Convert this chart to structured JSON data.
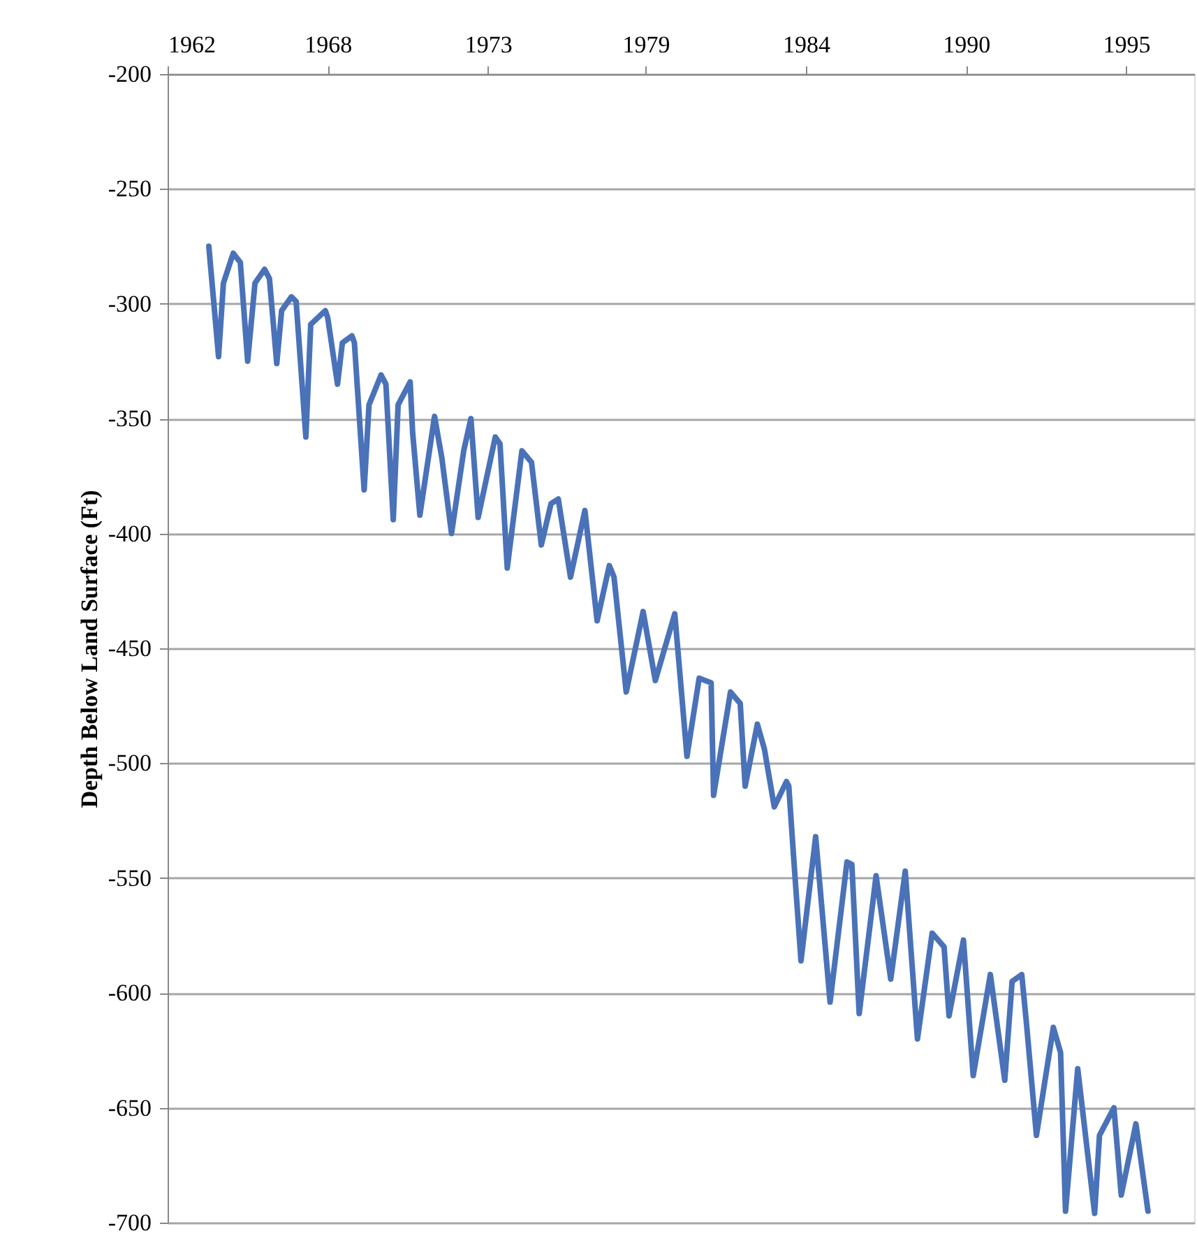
{
  "chart_data": {
    "type": "line",
    "ylabel": "Depth Below Land Surface (Ft)",
    "xlim": [
      "1962-11",
      "1998-02"
    ],
    "xticks": [
      {
        "value": "1962-11",
        "label": "1962"
      },
      {
        "value": "1968-05",
        "label": "1968"
      },
      {
        "value": "1973-11",
        "label": "1973"
      },
      {
        "value": "1979-04",
        "label": "1979"
      },
      {
        "value": "1984-10",
        "label": "1984"
      },
      {
        "value": "1990-04",
        "label": "1990"
      },
      {
        "value": "1995-10",
        "label": "1995"
      }
    ],
    "ylim": [
      -700,
      -200
    ],
    "yticks": [
      -200,
      -250,
      -300,
      -350,
      -400,
      -450,
      -500,
      -550,
      -600,
      -650,
      -700
    ],
    "grid": "y",
    "series": [
      {
        "color": "#4a72b8",
        "x": [
          "1964-04",
          "1964-08",
          "1964-10",
          "1965-02",
          "1965-05",
          "1965-08",
          "1965-11",
          "1966-03",
          "1966-05",
          "1966-08",
          "1966-10",
          "1967-02",
          "1967-04",
          "1967-08",
          "1967-10",
          "1968-04",
          "1968-05",
          "1968-09",
          "1968-11",
          "1969-03",
          "1969-04",
          "1969-08",
          "1969-10",
          "1970-03",
          "1970-05",
          "1970-08",
          "1970-10",
          "1971-03",
          "1971-04",
          "1971-07",
          "1972-01",
          "1972-04",
          "1972-08",
          "1973-01",
          "1973-04",
          "1973-07",
          "1974-02",
          "1974-04",
          "1974-07",
          "1975-01",
          "1975-05",
          "1975-09",
          "1976-01",
          "1976-04",
          "1976-09",
          "1977-03",
          "1977-08",
          "1978-01",
          "1978-03",
          "1978-08",
          "1979-03",
          "1979-08",
          "1980-04",
          "1980-09",
          "1981-02",
          "1981-07",
          "1981-08",
          "1982-03",
          "1982-07",
          "1982-09",
          "1983-02",
          "1983-05",
          "1983-09",
          "1984-02",
          "1984-03",
          "1984-05",
          "1984-08",
          "1985-02",
          "1985-08",
          "1986-03",
          "1986-05",
          "1986-08",
          "1987-03",
          "1987-09",
          "1988-03",
          "1988-08",
          "1989-02",
          "1989-07",
          "1989-09",
          "1990-03",
          "1990-07",
          "1991-02",
          "1991-08",
          "1991-11",
          "1992-03",
          "1992-05",
          "1992-09",
          "1993-04",
          "1993-07",
          "1993-09",
          "1994-02",
          "1994-09",
          "1994-11",
          "1995-05",
          "1995-08",
          "1996-02",
          "1996-07"
        ],
        "values": [
          -275,
          -323,
          -291,
          -278,
          -282,
          -325,
          -291,
          -285,
          -289,
          -326,
          -303,
          -297,
          -299,
          -358,
          -309,
          -303,
          -306,
          -335,
          -317,
          -314,
          -317,
          -381,
          -344,
          -331,
          -335,
          -394,
          -344,
          -334,
          -356,
          -392,
          -349,
          -367,
          -400,
          -364,
          -350,
          -393,
          -358,
          -361,
          -415,
          -364,
          -369,
          -405,
          -387,
          -385,
          -419,
          -390,
          -438,
          -414,
          -419,
          -469,
          -434,
          -464,
          -435,
          -497,
          -463,
          -465,
          -514,
          -469,
          -474,
          -510,
          -483,
          -494,
          -519,
          -508,
          -510,
          -541,
          -586,
          -532,
          -604,
          -543,
          -544,
          -609,
          -549,
          -594,
          -547,
          -620,
          -574,
          -580,
          -610,
          -577,
          -636,
          -592,
          -638,
          -595,
          -592,
          -614,
          -662,
          -615,
          -626,
          -695,
          -633,
          -696,
          -662,
          -650,
          -688,
          -657,
          -695
        ]
      }
    ]
  }
}
